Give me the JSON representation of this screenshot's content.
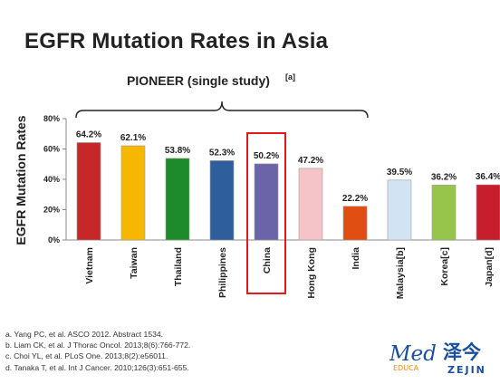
{
  "page_title": "EGFR Mutation Rates in Asia",
  "chart_data": {
    "type": "bar",
    "categories": [
      "Vietnam",
      "Taiwan",
      "Thailand",
      "Philippines",
      "China",
      "Hong Kong",
      "India",
      "Malaysia[b]",
      "Korea[c]",
      "Japan[d]"
    ],
    "values": [
      64.2,
      62.1,
      53.8,
      52.3,
      50.2,
      47.2,
      22.2,
      39.5,
      36.2,
      36.4
    ],
    "value_labels": [
      "64.2%",
      "62.1%",
      "53.8%",
      "52.3%",
      "50.2%",
      "47.2%",
      "22.2%",
      "39.5%",
      "36.2%",
      "36.4%"
    ],
    "colors": [
      "#c62828",
      "#f5b700",
      "#1e8b2b",
      "#2e5e9c",
      "#6b64a8",
      "#f4c4c8",
      "#e04e12",
      "#d2e4f3",
      "#97c44a",
      "#c81e2c"
    ],
    "ylabel": "EGFR Mutation Rates",
    "ylim": [
      0,
      80
    ],
    "yticks": [
      "0%",
      "20%",
      "40%",
      "60%",
      "80%"
    ],
    "grid": false,
    "legend": "none",
    "highlight_category": "China",
    "highlight_color": "#e3191f",
    "bracket_label": "PIONEER (single study)",
    "bracket_superscript": "[a]",
    "bracket_span": [
      "Vietnam",
      "India"
    ]
  },
  "references": [
    "a. Yang PC, et al. ASCO 2012. Abstract 1534.",
    "b. Liam CK, et al. J Thorac Oncol. 2013;8(6):766-772.",
    "c. Choi YL, et al. PLoS One. 2013;8(2):e56011.",
    "d. Tanaka T, et al. Int J Cancer. 2010;126(3):651-655."
  ],
  "logo": {
    "latin": "Med",
    "cjk": "泽今",
    "sub_left": "EDUCA",
    "sub_right": "ZEJIN",
    "blue": "#1a4f9c",
    "orange": "#f08a1c"
  }
}
